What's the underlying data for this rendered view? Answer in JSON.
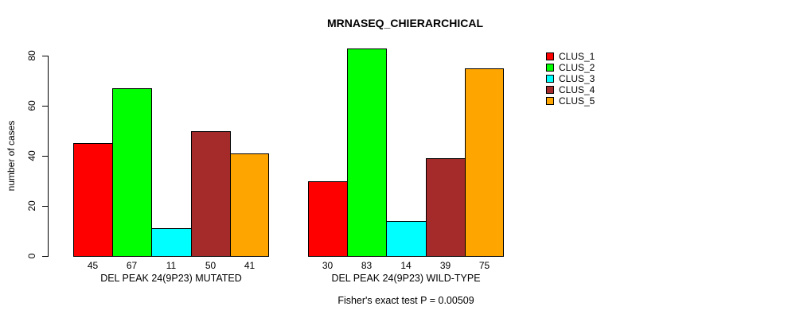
{
  "chart_data": {
    "type": "bar",
    "title": "MRNASEQ_CHIERARCHICAL",
    "ylabel": "number of cases",
    "xlabel": "",
    "ylim": [
      0,
      80
    ],
    "yticks": [
      0,
      20,
      40,
      60,
      80
    ],
    "grid": false,
    "legend_position": "top-right",
    "bar_value_labels": true,
    "series": [
      {
        "name": "CLUS_1",
        "color": "#FF0000"
      },
      {
        "name": "CLUS_2",
        "color": "#00FF00"
      },
      {
        "name": "CLUS_3",
        "color": "#00FFFF"
      },
      {
        "name": "CLUS_4",
        "color": "#A52A2A"
      },
      {
        "name": "CLUS_5",
        "color": "#FFA500"
      }
    ],
    "groups": [
      {
        "label": "DEL PEAK 24(9P23) MUTATED",
        "values": [
          45,
          67,
          11,
          50,
          41
        ]
      },
      {
        "label": "DEL PEAK 24(9P23) WILD-TYPE",
        "values": [
          30,
          83,
          14,
          39,
          75
        ]
      }
    ],
    "annotation": "Fisher's exact test P = 0.00509"
  }
}
